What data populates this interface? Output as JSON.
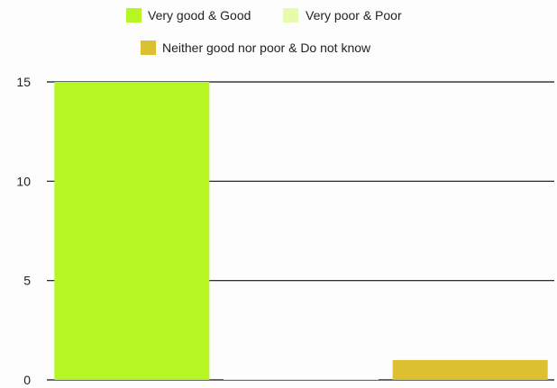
{
  "chart_data": {
    "type": "bar",
    "categories": [
      "",
      "",
      ""
    ],
    "series": [
      {
        "name": "Very good & Good",
        "values": [
          15,
          null,
          null
        ],
        "color": "#b6f625"
      },
      {
        "name": "Very poor & Poor",
        "values": [
          null,
          0.05,
          null
        ],
        "color": "#e6fcac"
      },
      {
        "name": "Neither good nor poor & Do not know",
        "values": [
          null,
          null,
          1
        ],
        "color": "#dcc030"
      }
    ],
    "yticks": [
      "0",
      "5",
      "10",
      "15"
    ],
    "ylim": [
      0,
      15
    ],
    "grid": true,
    "legend_position": "top",
    "title": "",
    "xlabel": "",
    "ylabel": ""
  }
}
